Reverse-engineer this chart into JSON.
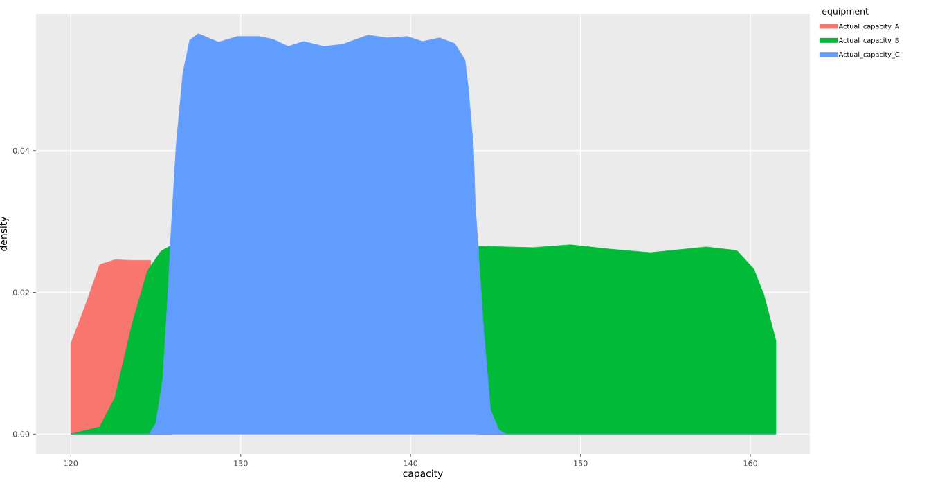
{
  "chart_data": {
    "type": "area",
    "xlabel": "capacity",
    "ylabel": "density",
    "legend_title": "equipment",
    "xlim": [
      117.95,
      163.5
    ],
    "ylim": [
      -0.0028,
      0.0593
    ],
    "xticks": [
      120,
      130,
      140,
      150,
      160
    ],
    "yticks": [
      {
        "value": 0,
        "label": "0.00"
      },
      {
        "value": 0.02,
        "label": "0.02"
      },
      {
        "value": 0.04,
        "label": "0.04"
      }
    ],
    "grid": true,
    "legend": "top right",
    "series": [
      {
        "name": "Actual_capacity_A",
        "color": "#f8766d",
        "x": [
          120,
          120.8,
          121.7,
          122.6,
          123.6,
          124.7
        ],
        "values": [
          0.0128,
          0.0178,
          0.0239,
          0.0246,
          0.0245,
          0.0245
        ]
      },
      {
        "name": "Actual_capacity_B",
        "color": "#00ba38",
        "x": [
          120,
          121.7,
          122.6,
          123.6,
          124.5,
          125.3,
          125.9,
          126.5,
          143.6,
          144.0,
          147.2,
          149.4,
          151.7,
          154.1,
          157.4,
          159.2,
          160.2,
          160.8,
          161.5
        ],
        "values": [
          0,
          0.001,
          0.0052,
          0.0155,
          0.023,
          0.0258,
          0.0266,
          null,
          null,
          0.0265,
          0.0263,
          0.0267,
          0.0261,
          0.0256,
          0.0264,
          0.0259,
          0.0233,
          0.0196,
          0.0132
        ]
      },
      {
        "name": "Actual_capacity_C",
        "color": "#619cff",
        "x": [
          120,
          124.6,
          125.0,
          125.4,
          125.7,
          125.9,
          126.2,
          126.6,
          127.0,
          127.5,
          128.7,
          129.8,
          131.1,
          131.9,
          132.8,
          133.7,
          134.9,
          136.0,
          137.5,
          138.6,
          139.8,
          140.7,
          141.7,
          142.6,
          143.2,
          143.4,
          143.7,
          143.8,
          144.3,
          144.7,
          145.2,
          145.6,
          161.5
        ],
        "values": [
          0,
          0,
          0.0015,
          0.0076,
          0.0192,
          0.0286,
          0.0407,
          0.051,
          0.0556,
          0.0565,
          0.0553,
          0.0561,
          0.0561,
          0.0557,
          0.0547,
          0.0554,
          0.0547,
          0.055,
          0.0563,
          0.0559,
          0.0561,
          0.0554,
          0.0559,
          0.0551,
          0.0528,
          0.0487,
          0.0403,
          0.0326,
          0.0146,
          0.0034,
          0.0006,
          0,
          0
        ]
      }
    ]
  }
}
